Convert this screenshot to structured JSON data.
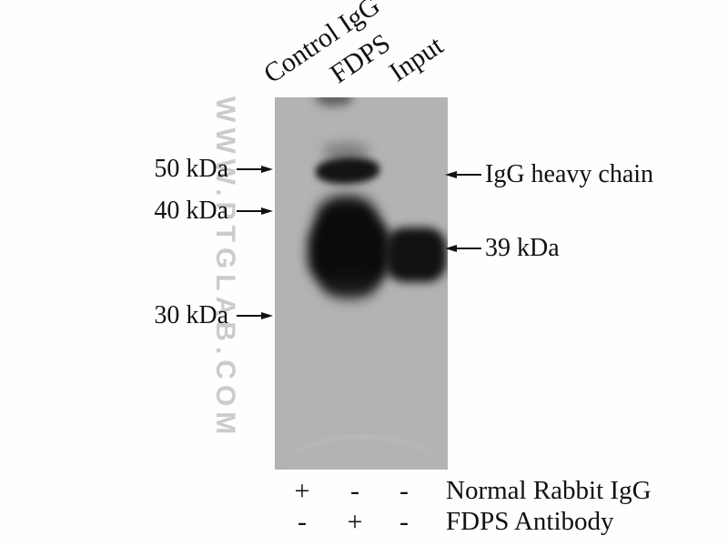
{
  "figure": {
    "type": "western-blot-immunoprecipitation",
    "watermark": {
      "text": "WWW.PTGLAB.COM",
      "color": "#cbcbcb"
    },
    "lanes": [
      {
        "label": "Control IgG"
      },
      {
        "label": "FDPS"
      },
      {
        "label": "Input"
      }
    ],
    "mw_markers": [
      {
        "label": "50 kDa",
        "value_kda": 50
      },
      {
        "label": "40 kDa",
        "value_kda": 40
      },
      {
        "label": "30 kDa",
        "value_kda": 30
      }
    ],
    "annotations": [
      {
        "label": "IgG heavy chain"
      },
      {
        "label": "39 kDa"
      }
    ],
    "bands": [
      {
        "lane": "FDPS",
        "identity": "IgG heavy chain",
        "approx_kda": 50,
        "intensity": "strong"
      },
      {
        "lane": "FDPS",
        "identity": "FDPS",
        "approx_kda": 39,
        "intensity": "very strong"
      },
      {
        "lane": "Input",
        "identity": "FDPS",
        "approx_kda": 39,
        "intensity": "strong"
      }
    ],
    "conditions": {
      "rows": [
        {
          "values": [
            "+",
            "-",
            "-"
          ],
          "label": "Normal Rabbit IgG"
        },
        {
          "values": [
            "-",
            "+",
            "-"
          ],
          "label": "FDPS Antibody"
        }
      ]
    },
    "colors": {
      "background": "#fefefe",
      "membrane": "#b3b3b3",
      "band": "#111111",
      "text": "#111111"
    }
  }
}
